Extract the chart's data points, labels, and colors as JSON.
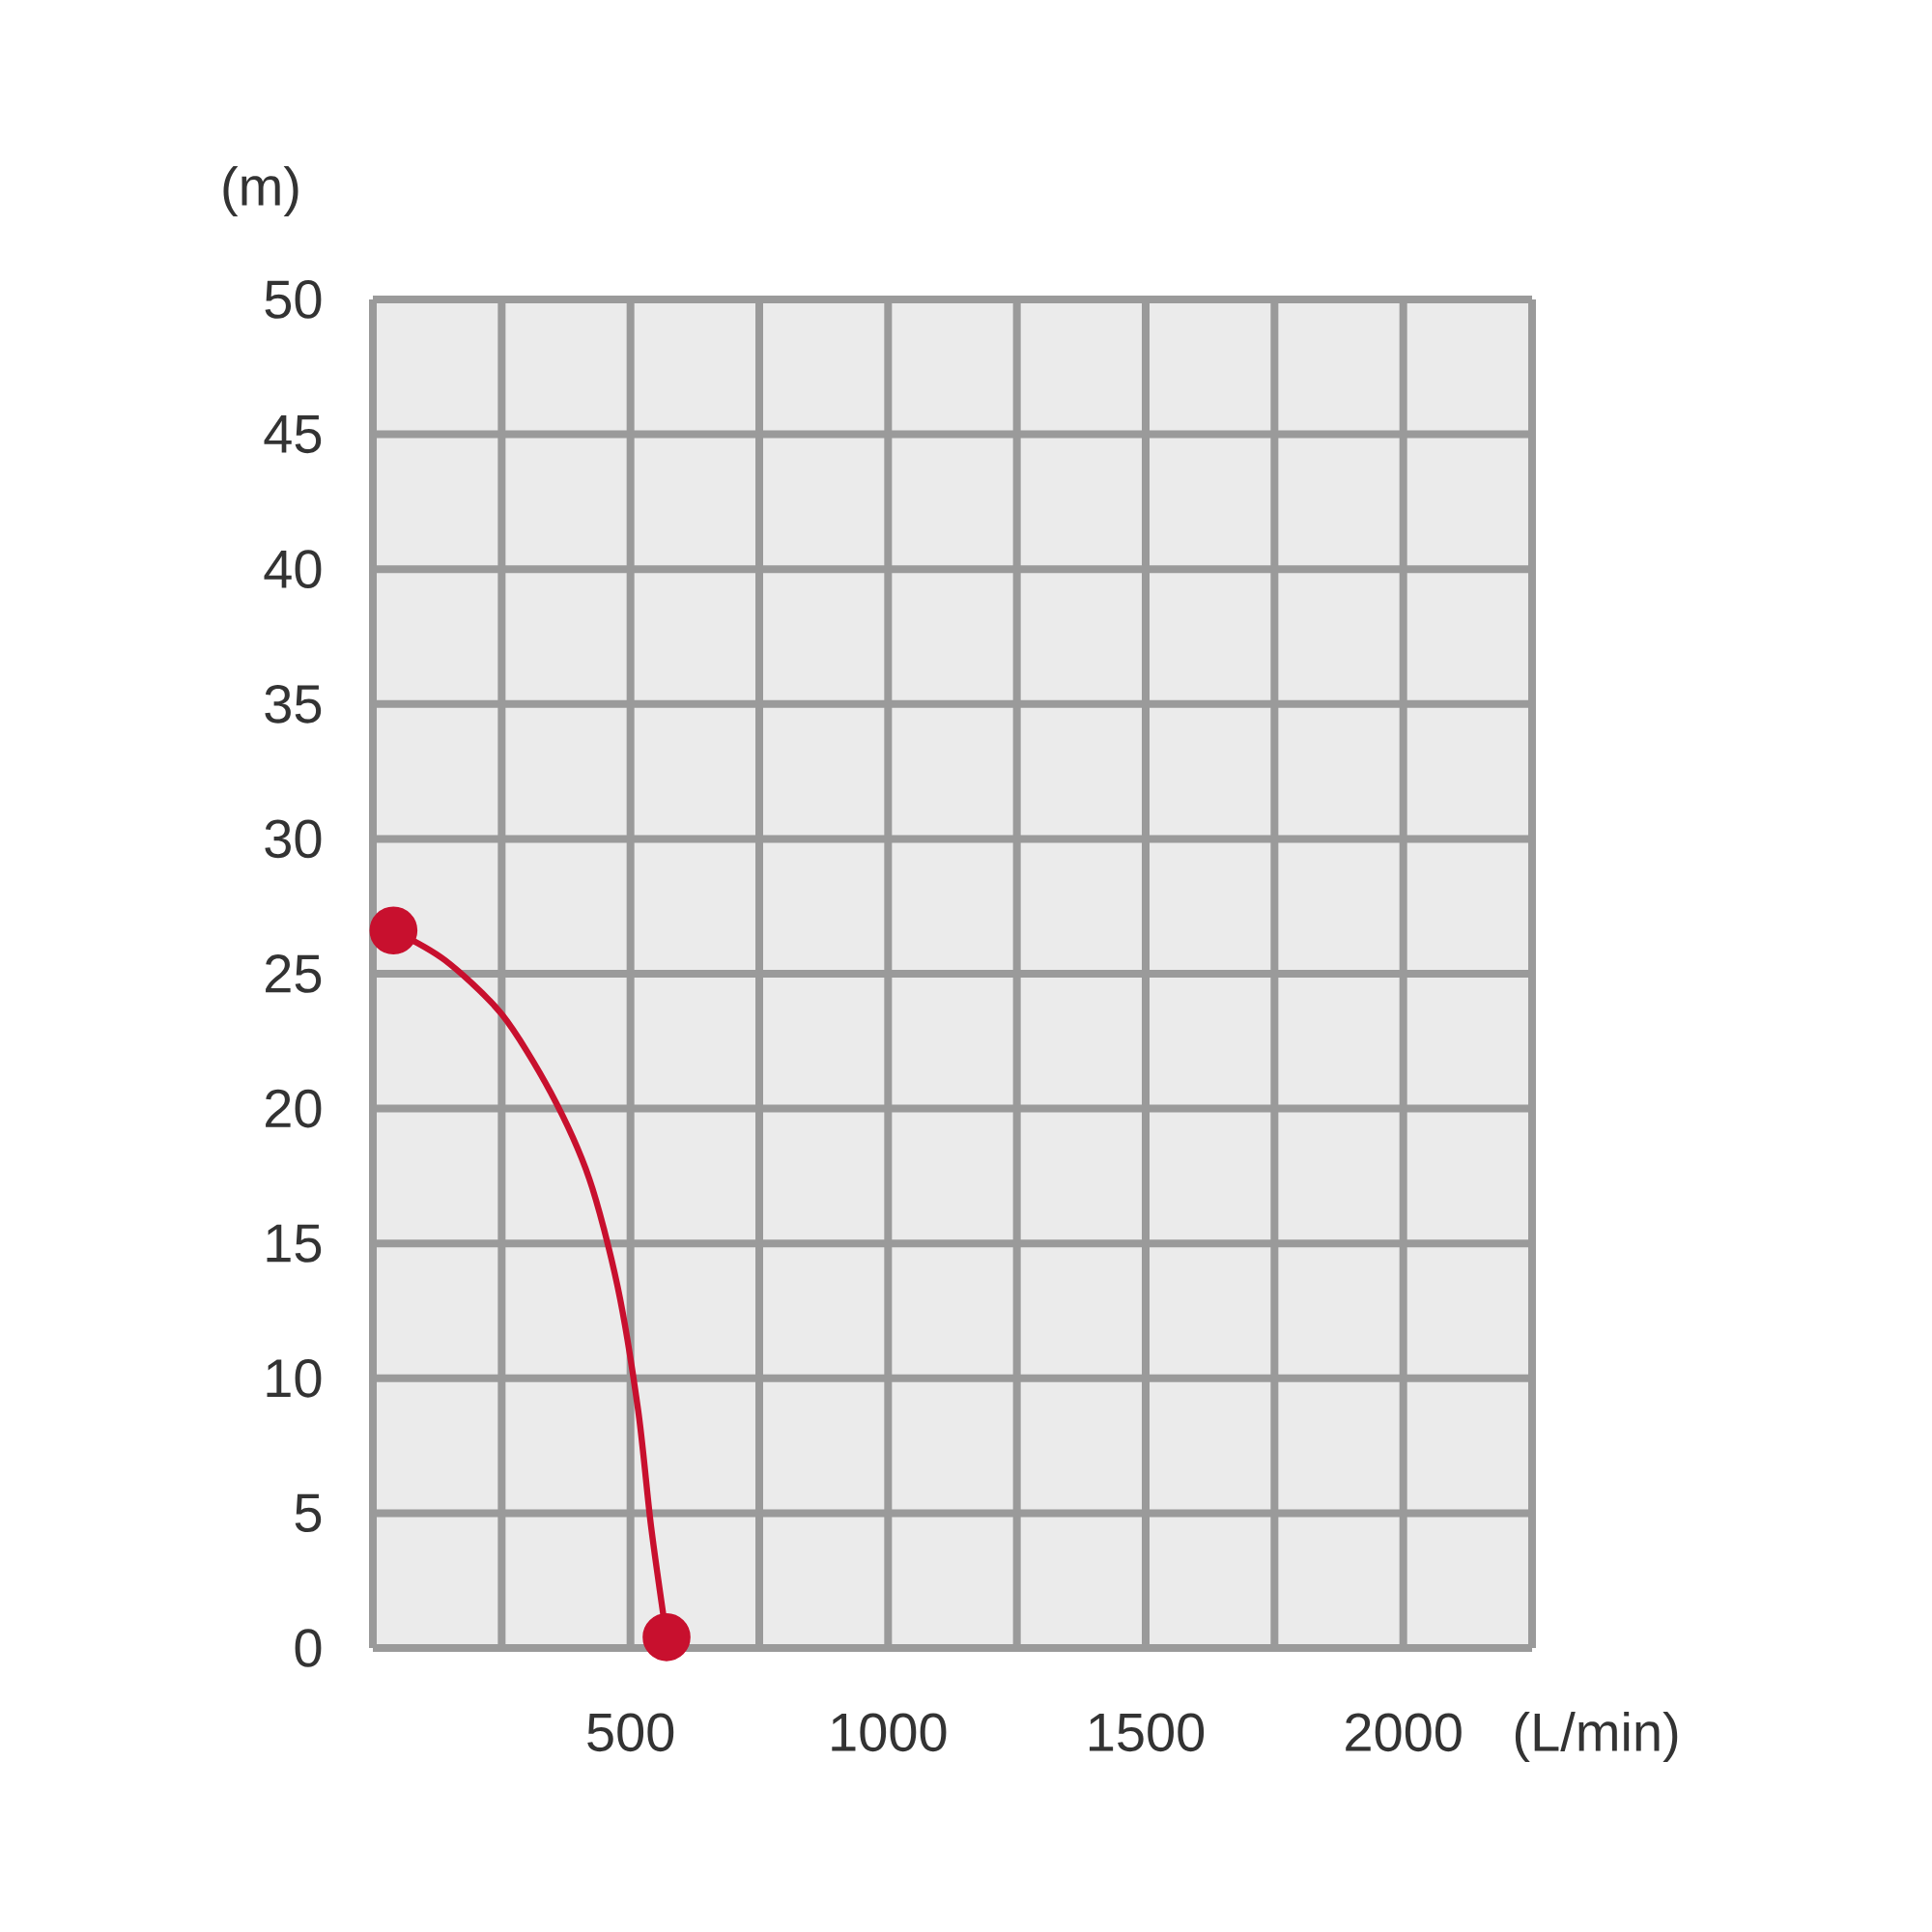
{
  "chart_data": {
    "type": "line",
    "xlabel": "(L/min)",
    "ylabel": "(m)",
    "xlim": [
      0,
      2250
    ],
    "ylim": [
      0,
      50
    ],
    "xticks": [
      {
        "value": 0,
        "label": null
      },
      {
        "value": 250,
        "label": null
      },
      500,
      {
        "value": 750,
        "label": null
      },
      1000,
      {
        "value": 1250,
        "label": null
      },
      1500,
      {
        "value": 1750,
        "label": null
      },
      2000,
      {
        "value": 2250,
        "label": null
      }
    ],
    "yticks": [
      0,
      5,
      10,
      15,
      20,
      25,
      30,
      35,
      40,
      45,
      50
    ],
    "grid": true,
    "series": [
      {
        "color": "#c8102e",
        "marker": "none",
        "x": [
          40,
          140,
          250,
          345,
          420,
          475,
          515,
          540,
          570
        ],
        "values": [
          26.6,
          25.5,
          23.5,
          20.6,
          17.4,
          13.4,
          8.8,
          4.5,
          0.4
        ]
      },
      {
        "type": "scatter",
        "color": "#c8102e",
        "marker": "circle",
        "x": [
          40,
          570
        ],
        "values": [
          26.6,
          0.4
        ]
      }
    ]
  }
}
